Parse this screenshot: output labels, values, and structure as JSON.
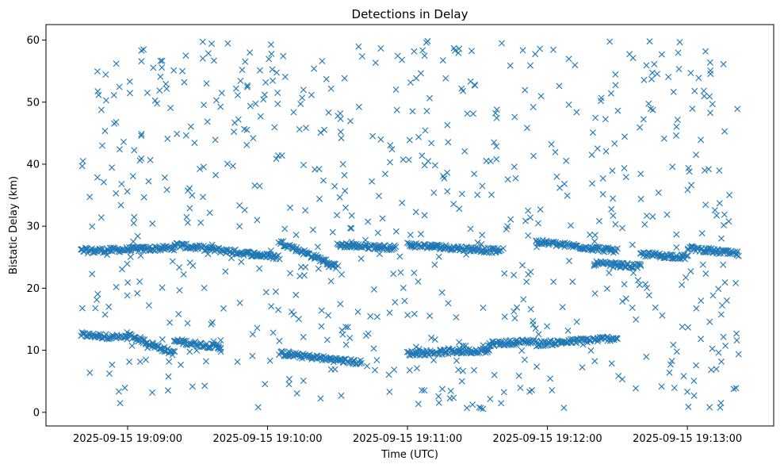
{
  "chart_data": {
    "type": "scatter",
    "title": "Detections in Delay",
    "xlabel": "Time (UTC)",
    "ylabel": "Bistatic Delay (km)",
    "marker": "x",
    "color": "#1f77b4",
    "grid": false,
    "xlim": [
      "2025-09-15 19:08:25",
      "2025-09-15 19:13:37"
    ],
    "ylim": [
      -2.2,
      62.5
    ],
    "x_ticks": [
      "2025-09-15 19:09:00",
      "2025-09-15 19:10:00",
      "2025-09-15 19:11:00",
      "2025-09-15 19:12:00",
      "2025-09-15 19:13:00"
    ],
    "y_ticks": [
      0,
      10,
      20,
      30,
      40,
      50,
      60
    ],
    "start": "2025-09-15 19:08:40",
    "end": "2025-09-15 19:13:22",
    "tracks": [
      {
        "from": "2025-09-15 19:08:40",
        "to": "2025-09-15 19:09:00",
        "y0": 12.5,
        "y1": 12.0
      },
      {
        "from": "2025-09-15 19:08:40",
        "to": "2025-09-15 19:09:20",
        "y0": 26.0,
        "y1": 26.5
      },
      {
        "from": "2025-09-15 19:09:00",
        "to": "2025-09-15 19:09:20",
        "y0": 12.5,
        "y1": 9.5
      },
      {
        "from": "2025-09-15 19:09:20",
        "to": "2025-09-15 19:09:40",
        "y0": 11.5,
        "y1": 10.5
      },
      {
        "from": "2025-09-15 19:09:20",
        "to": "2025-09-15 19:10:05",
        "y0": 27.0,
        "y1": 25.0
      },
      {
        "from": "2025-09-15 19:10:05",
        "to": "2025-09-15 19:10:30",
        "y0": 27.5,
        "y1": 23.5
      },
      {
        "from": "2025-09-15 19:10:05",
        "to": "2025-09-15 19:10:40",
        "y0": 9.5,
        "y1": 8.0
      },
      {
        "from": "2025-09-15 19:10:30",
        "to": "2025-09-15 19:10:55",
        "y0": 27.0,
        "y1": 26.5
      },
      {
        "from": "2025-09-15 19:11:00",
        "to": "2025-09-15 19:11:35",
        "y0": 9.5,
        "y1": 10.0
      },
      {
        "from": "2025-09-15 19:11:00",
        "to": "2025-09-15 19:11:40",
        "y0": 27.0,
        "y1": 26.0
      },
      {
        "from": "2025-09-15 19:11:35",
        "to": "2025-09-15 19:11:55",
        "y0": 11.0,
        "y1": 11.5
      },
      {
        "from": "2025-09-15 19:11:55",
        "to": "2025-09-15 19:12:30",
        "y0": 11.0,
        "y1": 12.0
      },
      {
        "from": "2025-09-15 19:11:55",
        "to": "2025-09-15 19:12:30",
        "y0": 27.5,
        "y1": 26.0
      },
      {
        "from": "2025-09-15 19:12:20",
        "to": "2025-09-15 19:12:40",
        "y0": 24.0,
        "y1": 23.5
      },
      {
        "from": "2025-09-15 19:12:40",
        "to": "2025-09-15 19:13:00",
        "y0": 25.5,
        "y1": 25.0
      },
      {
        "from": "2025-09-15 19:13:00",
        "to": "2025-09-15 19:13:22",
        "y0": 26.5,
        "y1": 25.5
      }
    ],
    "clutter_range": [
      0.5,
      60.0
    ],
    "clutter_count": 720
  }
}
